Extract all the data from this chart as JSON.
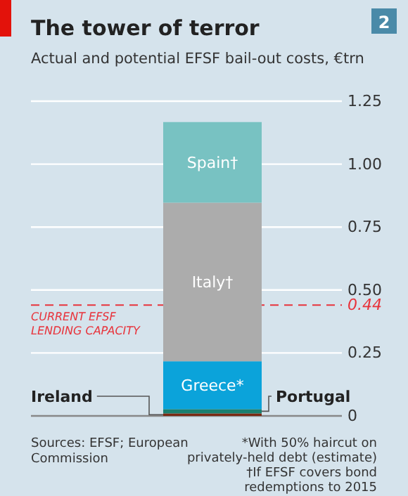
{
  "chart_data": {
    "type": "bar",
    "title": "The tower of terror",
    "subtitle": "Actual and potential EFSF bail-out costs, €trn",
    "categories": [
      null
    ],
    "stacked": true,
    "series": [
      {
        "name": "Ireland",
        "color": "#7a2a14",
        "values": [
          0.01
        ]
      },
      {
        "name": "Portugal",
        "color": "#1a8070",
        "values": [
          0.017
        ]
      },
      {
        "name": "Greece*",
        "color": "#0ba3da",
        "values": [
          0.19
        ]
      },
      {
        "name": "Italy†",
        "color": "#acacac",
        "values": [
          0.63
        ]
      },
      {
        "name": "Spain†",
        "color": "#78c2c2",
        "values": [
          0.32
        ]
      }
    ],
    "ylim": [
      0,
      1.25
    ],
    "yticks": [
      0,
      0.25,
      0.44,
      {
        "value": 0.5,
        "label": "0.50"
      },
      0.75,
      {
        "value": 1,
        "label": "1.00"
      },
      1.25
    ],
    "grid": "y",
    "legend": false,
    "ref_lines": [
      {
        "axis": "y",
        "value": 0.44,
        "label": "CURRENT EFSF LENDING CAPACITY",
        "color": "#e8333b",
        "line_style": "dashed"
      }
    ],
    "annotations": [
      "2",
      "Sources: EFSF; European Commission",
      "*With 50% haircut on privately-held debt (estimate)",
      "†If EFSF covers bond redemptions to 2015"
    ]
  }
}
